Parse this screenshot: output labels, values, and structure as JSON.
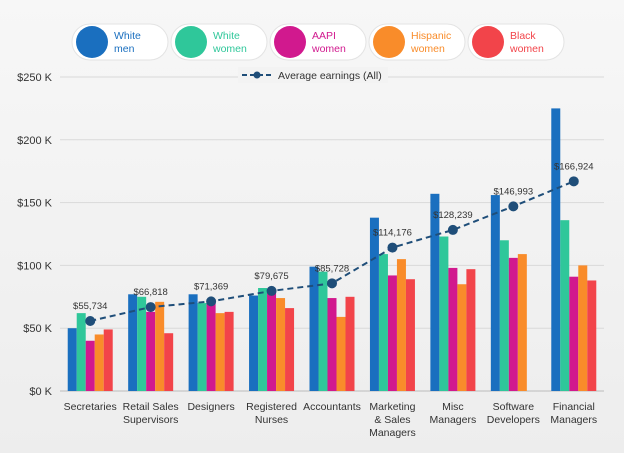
{
  "chart_data": {
    "type": "bar",
    "title": "",
    "xlabel": "",
    "ylabel": "",
    "ylim": [
      0,
      250000
    ],
    "y_ticks": [
      0,
      50000,
      100000,
      150000,
      200000,
      250000
    ],
    "y_tick_labels": [
      "$0 K",
      "$50 K",
      "$100 K",
      "$150 K",
      "$200 K",
      "$250 K"
    ],
    "grid": true,
    "legend_position": "top",
    "categories": [
      [
        "Secretaries"
      ],
      [
        "Retail Sales",
        "Supervisors"
      ],
      [
        "Designers"
      ],
      [
        "Registered",
        "Nurses"
      ],
      [
        "Accountants"
      ],
      [
        "Marketing",
        "& Sales",
        "Managers"
      ],
      [
        "Misc",
        "Managers"
      ],
      [
        "Software",
        "Developers"
      ],
      [
        "Financial",
        "Managers"
      ]
    ],
    "series": [
      {
        "name": [
          "White",
          "men"
        ],
        "color": "#1a6fbf",
        "values": [
          50000,
          77000,
          77000,
          76000,
          99000,
          138000,
          157000,
          156000,
          225000
        ]
      },
      {
        "name": [
          "White",
          "women"
        ],
        "color": "#2fc79a",
        "values": [
          62000,
          75000,
          70000,
          82000,
          95000,
          109000,
          123000,
          120000,
          136000
        ]
      },
      {
        "name": [
          "AAPI",
          "women"
        ],
        "color": "#d1198e",
        "values": [
          40000,
          63000,
          73000,
          81000,
          74000,
          92000,
          98000,
          106000,
          91000
        ]
      },
      {
        "name": [
          "Hispanic",
          "women"
        ],
        "color": "#f98c2a",
        "values": [
          45000,
          71000,
          62000,
          74000,
          59000,
          105000,
          85000,
          109000,
          100000
        ]
      },
      {
        "name": [
          "Black",
          "women"
        ],
        "color": "#f2444a",
        "values": [
          49000,
          46000,
          63000,
          66000,
          75000,
          89000,
          97000,
          0,
          88000
        ]
      }
    ],
    "line_series": {
      "name": "Average earnings (All)",
      "color": "#1f4e79",
      "values": [
        55734,
        66818,
        71369,
        79675,
        85728,
        114176,
        128239,
        146993,
        166924
      ],
      "labels": [
        "$55,734",
        "$66,818",
        "$71,369",
        "$79,675",
        "$85,728",
        "$114,176",
        "$128,239",
        "$146,993",
        "$166,924"
      ]
    }
  }
}
